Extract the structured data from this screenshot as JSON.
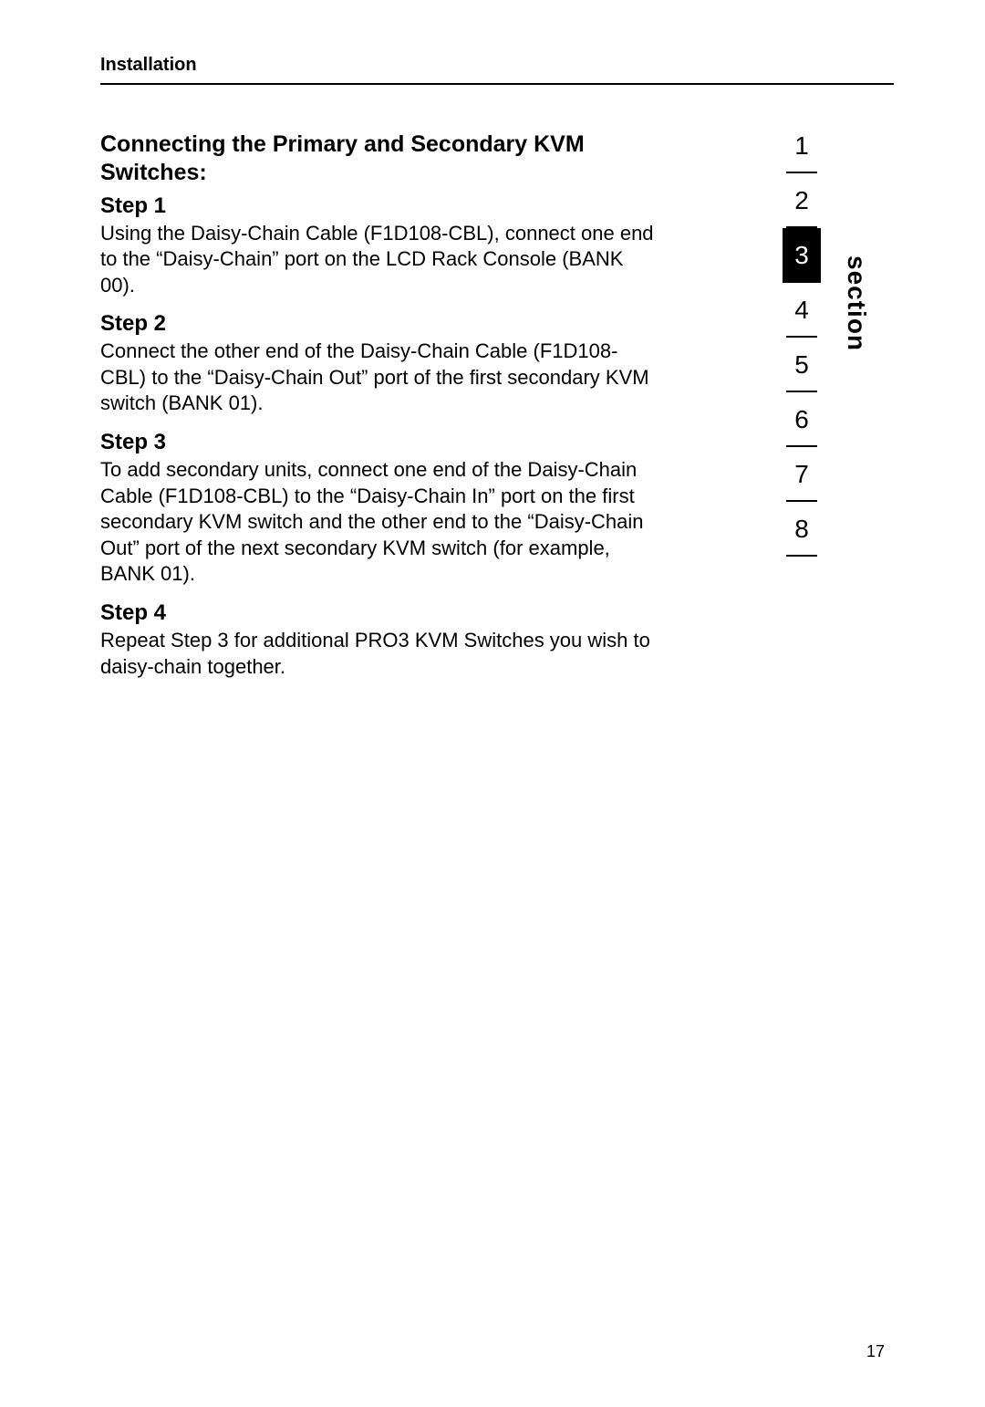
{
  "header": {
    "label": "Installation"
  },
  "main": {
    "heading": "Connecting the Primary and Secondary KVM Switches:",
    "steps": [
      {
        "title": "Step 1",
        "body": "Using the Daisy-Chain Cable (F1D108-CBL), connect one end to the “Daisy-Chain” port on the LCD Rack Console (BANK 00)."
      },
      {
        "title": "Step 2",
        "body": "Connect the other end of the Daisy-Chain Cable (F1D108-CBL) to the “Daisy-Chain Out” port of the first secondary KVM switch (BANK 01)."
      },
      {
        "title": "Step 3",
        "body": "To add secondary units, connect one end of the Daisy-Chain Cable (F1D108-CBL) to the “Daisy-Chain In” port on the first secondary KVM switch and the other end to the “Daisy-Chain Out” port of the next secondary KVM switch (for example, BANK 01)."
      },
      {
        "title": "Step 4",
        "body": "Repeat Step 3 for additional PRO3 KVM Switches you wish to daisy-chain together."
      }
    ]
  },
  "nav": {
    "label": "section",
    "items": [
      "1",
      "2",
      "3",
      "4",
      "5",
      "6",
      "7",
      "8"
    ],
    "active_index": 2
  },
  "page_number": "17",
  "colors": {
    "text": "#000000",
    "bg": "#ffffff",
    "active_bg": "#000000",
    "active_fg": "#ffffff"
  }
}
